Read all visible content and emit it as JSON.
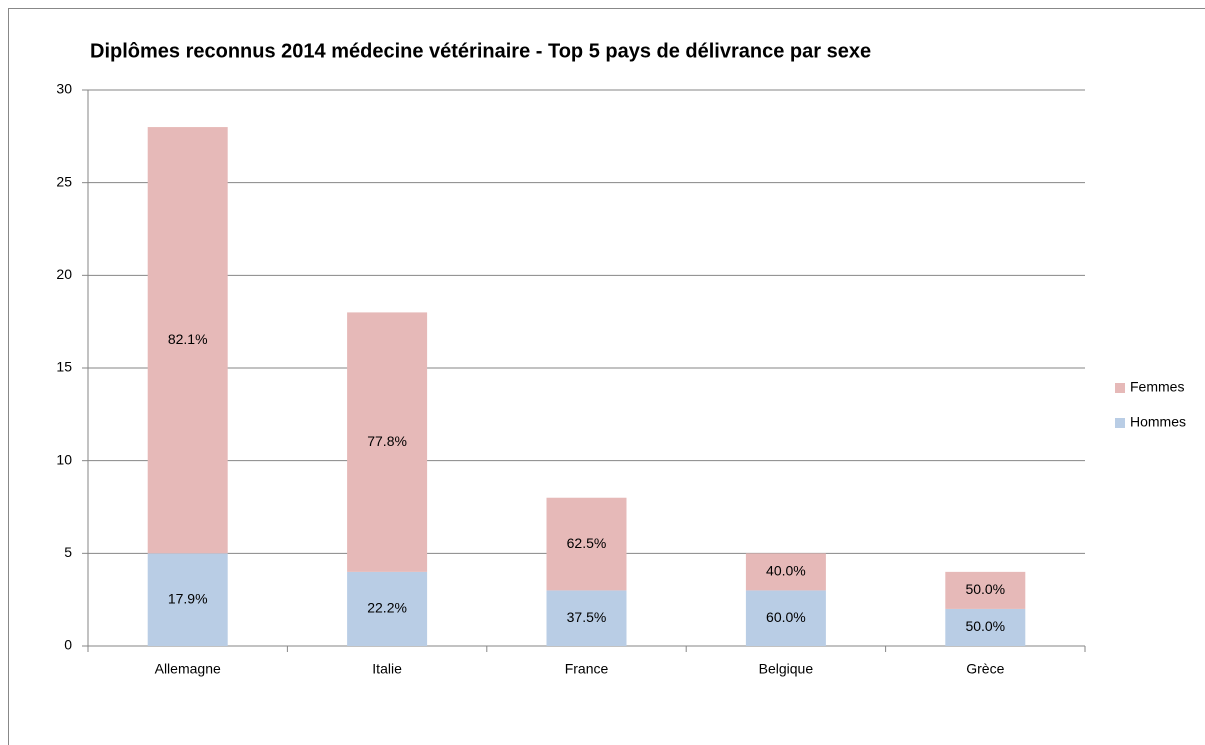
{
  "chart_data": {
    "type": "stacked_bar",
    "title": "Diplômes reconnus 2014 médecine vétérinaire - Top 5 pays de délivrance par sexe",
    "categories": [
      "Allemagne",
      "Italie",
      "France",
      "Belgique",
      "Grèce"
    ],
    "series": [
      {
        "name": "Hommes",
        "color": "#b9cde5",
        "values": [
          5,
          4,
          3,
          3,
          2
        ],
        "value_labels": [
          "17.9%",
          "22.2%",
          "37.5%",
          "60.0%",
          "50.0%"
        ]
      },
      {
        "name": "Femmes",
        "color": "#e6b9b8",
        "values": [
          23,
          14,
          5,
          2,
          2
        ],
        "value_labels": [
          "82.1%",
          "77.8%",
          "62.5%",
          "40.0%",
          "50.0%"
        ]
      }
    ],
    "ylim": [
      0,
      30
    ],
    "yticks": [
      0,
      5,
      10,
      15,
      20,
      25,
      30
    ],
    "grid": true,
    "legend": "right"
  }
}
